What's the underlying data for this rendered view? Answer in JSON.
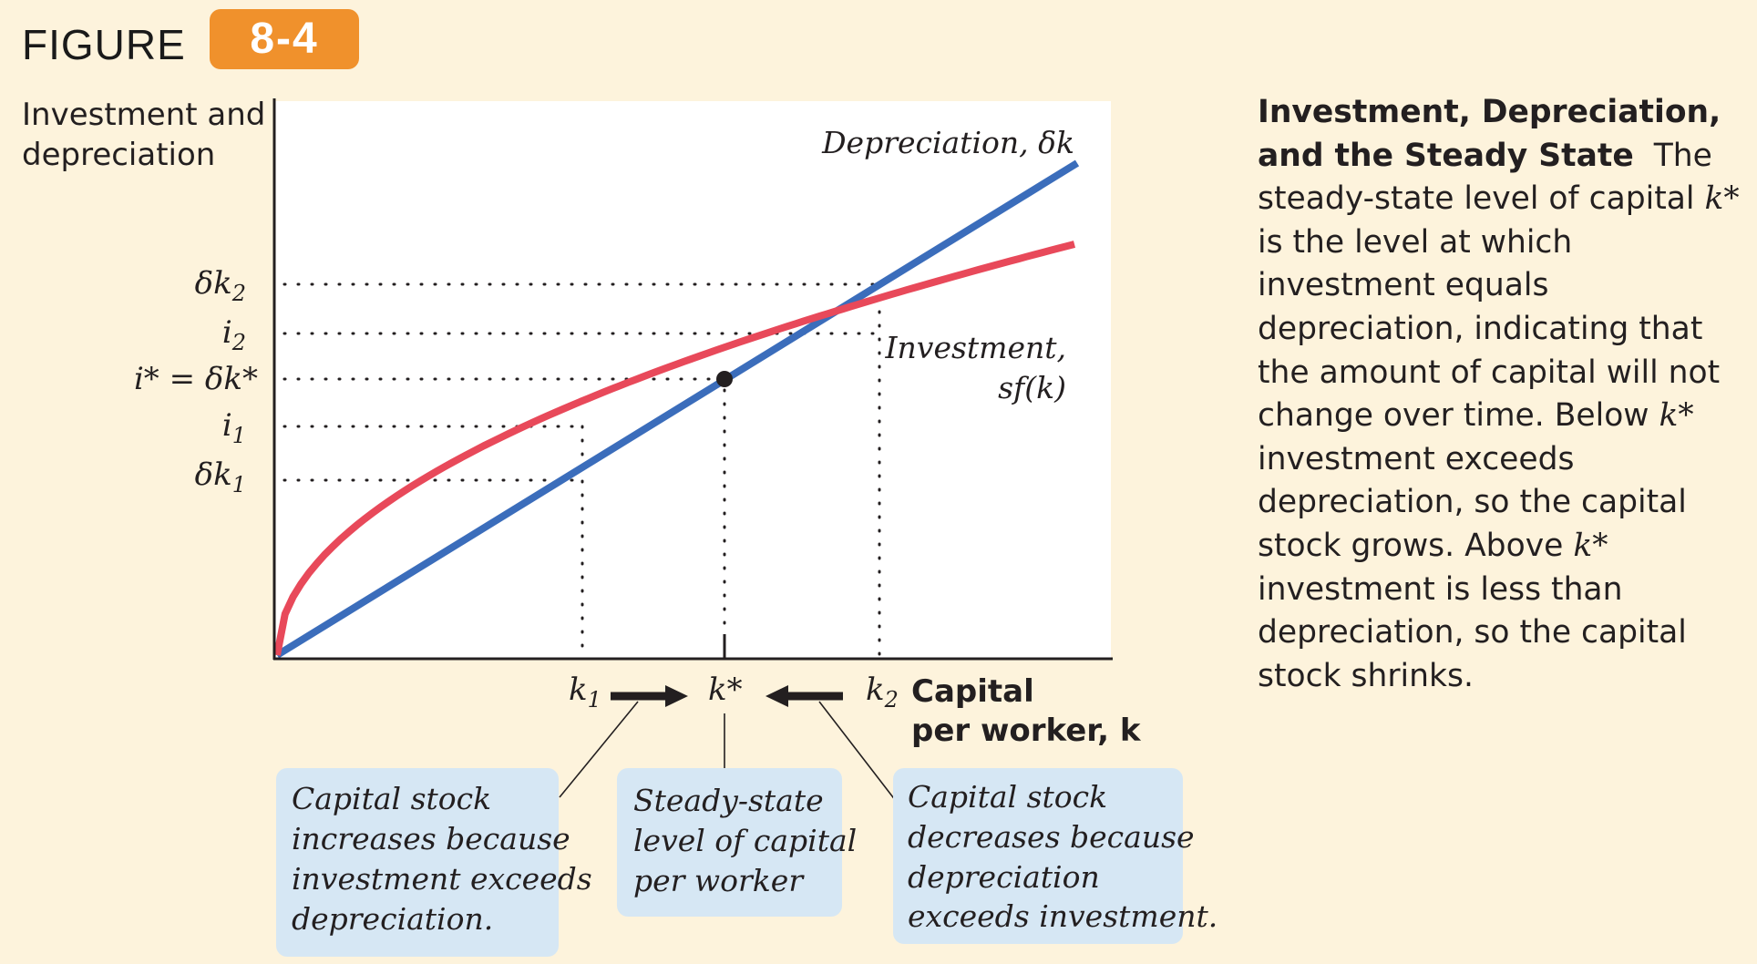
{
  "figure": {
    "label": "FIGURE",
    "number": "8-4",
    "badge_color": "#f0912c"
  },
  "axes": {
    "y_title": "Investment and\ndepreciation",
    "x_title_line1": "Capital",
    "x_title_line2": "per worker, k"
  },
  "y_tick_labels": {
    "dk2": {
      "main": "δk",
      "sub": "2"
    },
    "i2": {
      "main": "i",
      "sub": "2"
    },
    "istar": {
      "main": "i* = δk*"
    },
    "i1": {
      "main": "i",
      "sub": "1"
    },
    "dk1": {
      "main": "δk",
      "sub": "1"
    }
  },
  "x_tick_labels": {
    "k1": {
      "main": "k",
      "sub": "1"
    },
    "kstar": {
      "main": "k*"
    },
    "k2": {
      "main": "k",
      "sub": "2"
    }
  },
  "curves": {
    "depreciation": {
      "label": "Depreciation, δk",
      "color": "#3b6dbb"
    },
    "investment": {
      "label_line1": "Investment,",
      "label_line2": "sf(k)",
      "color": "#e8495a"
    }
  },
  "callouts": {
    "left": {
      "lines": [
        "Capital stock",
        "increases because",
        "investment exceeds",
        "depreciation."
      ]
    },
    "middle": {
      "lines": [
        "Steady-state",
        "level of capital",
        "per worker"
      ]
    },
    "right": {
      "lines": [
        "Capital stock",
        "decreases because",
        "depreciation",
        "exceeds investment."
      ]
    },
    "box_color": "#d6e7f4"
  },
  "caption": {
    "title": "Investment, Depreciation, and the Steady State",
    "body_1": "The steady-state level of capital ",
    "k1": "k*",
    "body_2": " is the level at which investment equals depreciation, indicating that the amount of capital will not change over time. Below ",
    "k2": "k*",
    "body_3": " investment exceeds depreciation, so the capital stock grows. Above ",
    "k3": "k*",
    "body_4": " investment is less than depreciation, so the capital stock shrinks."
  }
}
